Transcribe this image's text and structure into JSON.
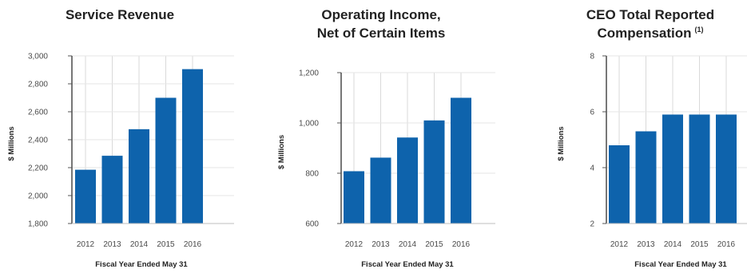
{
  "chart_data": [
    {
      "type": "bar",
      "title_lines": [
        "Service Revenue"
      ],
      "title_sup": "",
      "categories": [
        "2012",
        "2013",
        "2014",
        "2015",
        "2016"
      ],
      "values": [
        2185,
        2285,
        2475,
        2700,
        2905
      ],
      "xlabel": "Fiscal Year Ended May 31",
      "ylabel": "$ Millions",
      "ylim": [
        1800,
        3000
      ],
      "yticks": [
        "1,800",
        "2,000",
        "2,200",
        "2,400",
        "2,600",
        "2,800",
        "3,000"
      ],
      "bar_color": "#0e63ac",
      "grid": true
    },
    {
      "type": "bar",
      "title_lines": [
        "Operating Income,",
        "Net of Certain Items"
      ],
      "title_sup": "",
      "categories": [
        "2012",
        "2013",
        "2014",
        "2015",
        "2016"
      ],
      "values": [
        808,
        862,
        942,
        1010,
        1100
      ],
      "xlabel": "Fiscal Year Ended May 31",
      "ylabel": "$ Millions",
      "ylim": [
        600,
        1200
      ],
      "yticks": [
        "600",
        "800",
        "1,000",
        "1,200"
      ],
      "bar_color": "#0e63ac",
      "grid": true
    },
    {
      "type": "bar",
      "title_lines": [
        "CEO Total Reported",
        "Compensation"
      ],
      "title_sup": "(1)",
      "categories": [
        "2012",
        "2013",
        "2014",
        "2015",
        "2016"
      ],
      "values": [
        4.8,
        5.3,
        5.9,
        5.9,
        5.9
      ],
      "xlabel": "Fiscal Year Ended May 31",
      "ylabel": "$ Millions",
      "ylim": [
        2,
        8
      ],
      "yticks": [
        "2",
        "4",
        "6",
        "8"
      ],
      "bar_color": "#0e63ac",
      "grid": true
    }
  ]
}
